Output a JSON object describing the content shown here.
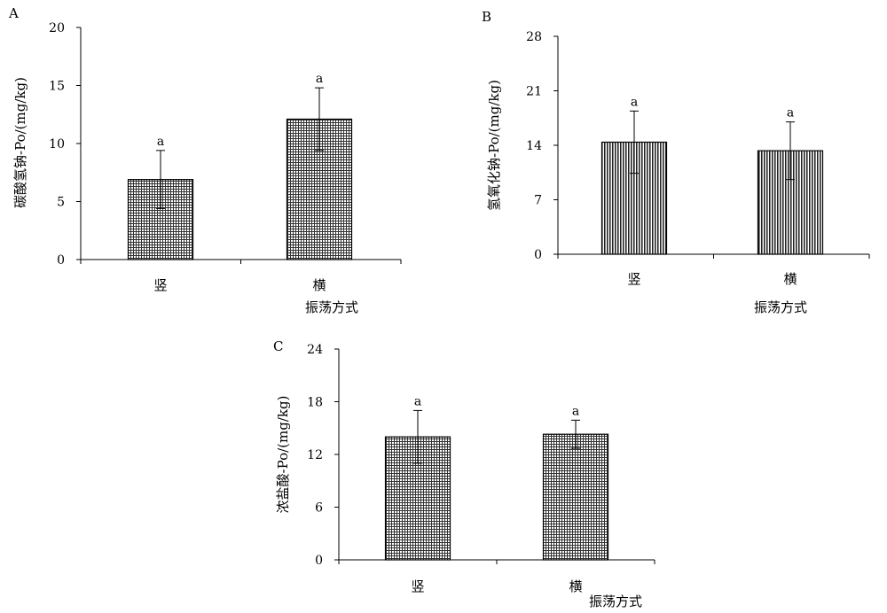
{
  "chart_data": [
    {
      "type": "bar",
      "panel_label": "A",
      "title": "",
      "xlabel": "振荡方式",
      "ylabel": "碳酸氢钠-Po/(mg/kg)",
      "categories": [
        "竖",
        "横"
      ],
      "values": [
        6.9,
        12.1
      ],
      "errors": [
        2.5,
        2.7
      ],
      "sig_labels": [
        "a",
        "a"
      ],
      "ylim": [
        0,
        20
      ],
      "yticks": [
        0,
        5,
        10,
        15,
        20
      ],
      "pattern": "grid",
      "grid": false
    },
    {
      "type": "bar",
      "panel_label": "B",
      "title": "",
      "xlabel": "振荡方式",
      "ylabel": "氢氧化钠-Po/(mg/kg)",
      "categories": [
        "竖",
        "横"
      ],
      "values": [
        14.4,
        13.3
      ],
      "errors": [
        4.0,
        3.7
      ],
      "sig_labels": [
        "a",
        "a"
      ],
      "ylim": [
        0,
        28
      ],
      "yticks": [
        0,
        7,
        14,
        21,
        28
      ],
      "pattern": "vertical",
      "grid": false
    },
    {
      "type": "bar",
      "panel_label": "C",
      "title": "",
      "xlabel": "振荡方式",
      "ylabel": "浓盐酸-Po/(mg/kg)",
      "categories": [
        "竖",
        "横"
      ],
      "values": [
        14.0,
        14.3
      ],
      "errors": [
        3.0,
        1.6
      ],
      "sig_labels": [
        "a",
        "a"
      ],
      "ylim": [
        0,
        24
      ],
      "yticks": [
        0,
        6,
        12,
        18,
        24
      ],
      "pattern": "grid",
      "grid": false
    }
  ]
}
